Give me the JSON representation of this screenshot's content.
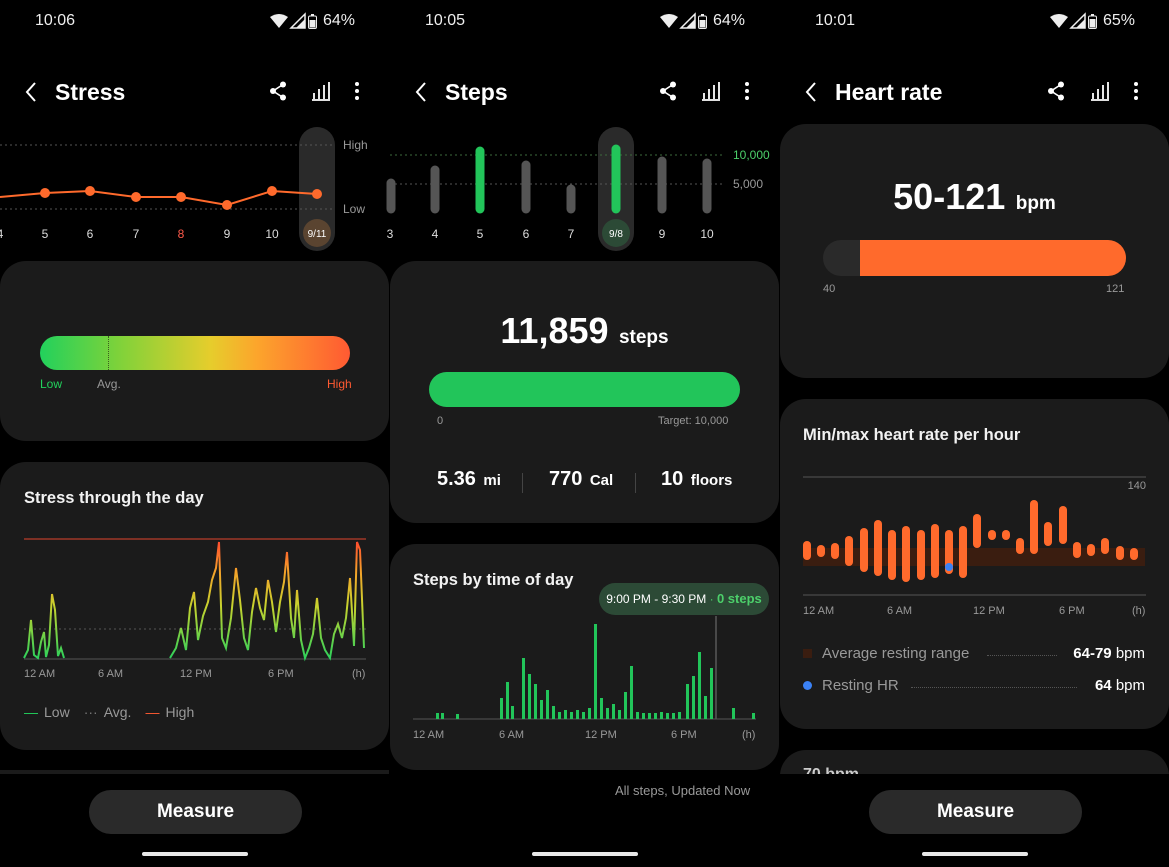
{
  "stress": {
    "status": {
      "time": "10:06",
      "battery": "64%"
    },
    "title": "Stress",
    "week_days": [
      "4",
      "5",
      "6",
      "7",
      "8",
      "9",
      "10"
    ],
    "selected_day": "9/11",
    "level_high": "High",
    "level_low": "Low",
    "bar_low": "Low",
    "bar_avg": "Avg.",
    "bar_high": "High",
    "day_card_title": "Stress through the day",
    "time_ticks": [
      "12 AM",
      "6 AM",
      "12 PM",
      "6 PM",
      "(h)"
    ],
    "legend": {
      "low": "Low",
      "avg": "Avg.",
      "high": "High"
    },
    "measure": "Measure"
  },
  "steps": {
    "status": {
      "time": "10:05",
      "battery": "64%"
    },
    "title": "Steps",
    "week_days": [
      "3",
      "4",
      "5",
      "6",
      "7",
      "9",
      "10"
    ],
    "selected_day": "9/8",
    "ref_high": "10,000",
    "ref_mid": "5,000",
    "total": "11,859",
    "total_unit": "steps",
    "bar_min": "0",
    "target": "Target: 10,000",
    "distance": "5.36",
    "distance_unit": "mi",
    "calories": "770",
    "calories_unit": "Cal",
    "floors": "10",
    "floors_unit": "floors",
    "progress_fraction": 1.0,
    "tod_title": "Steps by time of day",
    "tooltip_range": "9:00 PM - 9:30 PM",
    "tooltip_dot": "·",
    "tooltip_value": "0 steps",
    "time_ticks": [
      "12 AM",
      "6 AM",
      "12 PM",
      "6 PM",
      "(h)"
    ],
    "footer": "All steps, Updated Now"
  },
  "heart": {
    "status": {
      "time": "10:01",
      "battery": "65%"
    },
    "title": "Heart rate",
    "range": "50-121",
    "range_unit": "bpm",
    "bar_min": "40",
    "bar_max": "121",
    "hourly_title": "Min/max heart rate per hour",
    "axis_max": "140",
    "time_ticks": [
      "12 AM",
      "6 AM",
      "12 PM",
      "6 PM",
      "(h)"
    ],
    "avg_resting_label": "Average resting range",
    "avg_resting_value": "64-79",
    "avg_resting_unit": "bpm",
    "resting_hr_label": "Resting HR",
    "resting_hr_value": "64",
    "resting_hr_unit": "bpm",
    "peek_text": "70 bpm",
    "measure": "Measure"
  },
  "colors": {
    "green": "#22c55a",
    "orange": "#ff6a2c",
    "card": "#1b1b1b",
    "red_line": "#e0462c",
    "blue": "#3b82f6"
  }
}
